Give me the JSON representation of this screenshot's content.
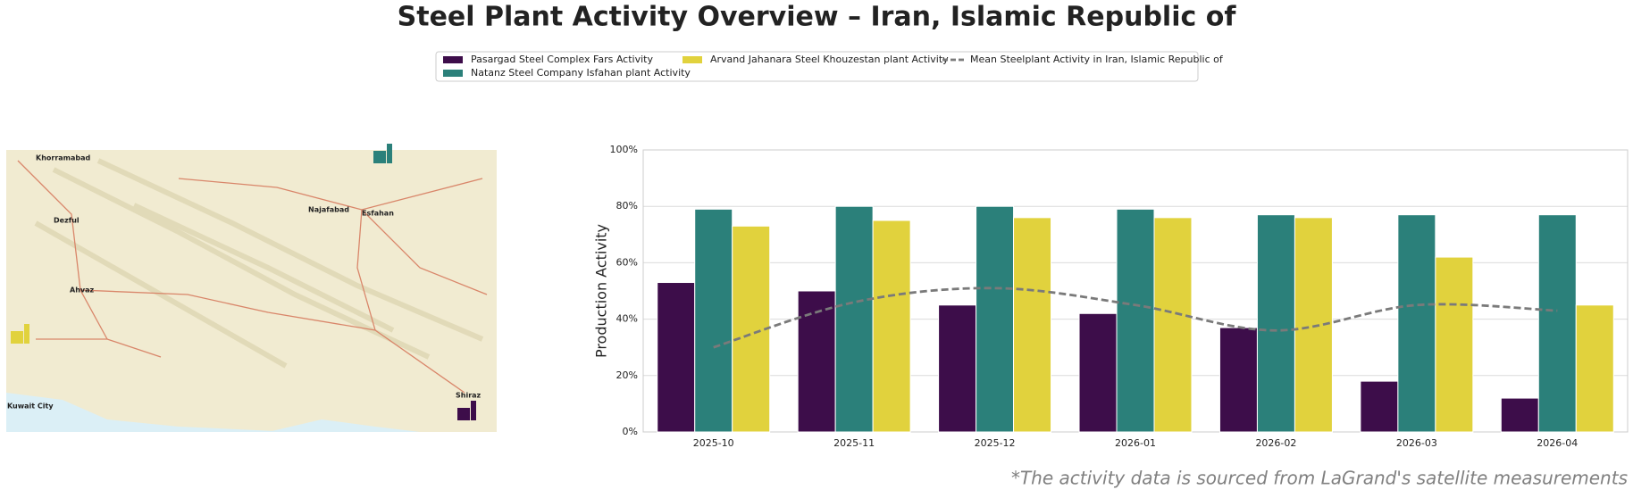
{
  "chart_data": {
    "type": "bar",
    "title": "Steel Plant Activity Overview – Iran, Islamic Republic of",
    "footnote": "*The activity data is sourced from LaGrand's satellite measurements",
    "ylabel": "Production Activity",
    "categories": [
      "2025-10",
      "2025-11",
      "2025-12",
      "2026-01",
      "2026-02",
      "2026-03",
      "2026-04"
    ],
    "series": [
      {
        "name": "Pasargad Steel Complex Fars Activity",
        "color": "#3d0d4a",
        "values": [
          53,
          50,
          45,
          42,
          37,
          18,
          12
        ]
      },
      {
        "name": "Natanz Steel Company Isfahan plant Activity",
        "color": "#2b807a",
        "values": [
          79,
          80,
          80,
          79,
          77,
          77,
          77
        ]
      },
      {
        "name": "Arvand Jahanara Steel Khouzestan plant Activity",
        "color": "#e1d23d",
        "values": [
          73,
          75,
          76,
          76,
          76,
          62,
          45
        ]
      },
      {
        "name": "Mean Steelplant Activity in Iran, Islamic Republic of",
        "color": "#7a7a7a",
        "type": "line",
        "dashed": true,
        "values": [
          30,
          46,
          51,
          45,
          36,
          45,
          43
        ]
      }
    ],
    "ylim": [
      0,
      100
    ],
    "yticks": [
      {
        "value": 0,
        "label": "0%"
      },
      {
        "value": 20,
        "label": "20%"
      },
      {
        "value": 40,
        "label": "40%"
      },
      {
        "value": 60,
        "label": "60%"
      },
      {
        "value": 80,
        "label": "80%"
      },
      {
        "value": 100,
        "label": "100%"
      }
    ],
    "grid": true
  },
  "map": {
    "labels": [
      "Khorramabad",
      "Esfahan",
      "Ahvaz",
      "Shiraz",
      "Kuwait City",
      "Dezful",
      "Najafabad"
    ]
  }
}
